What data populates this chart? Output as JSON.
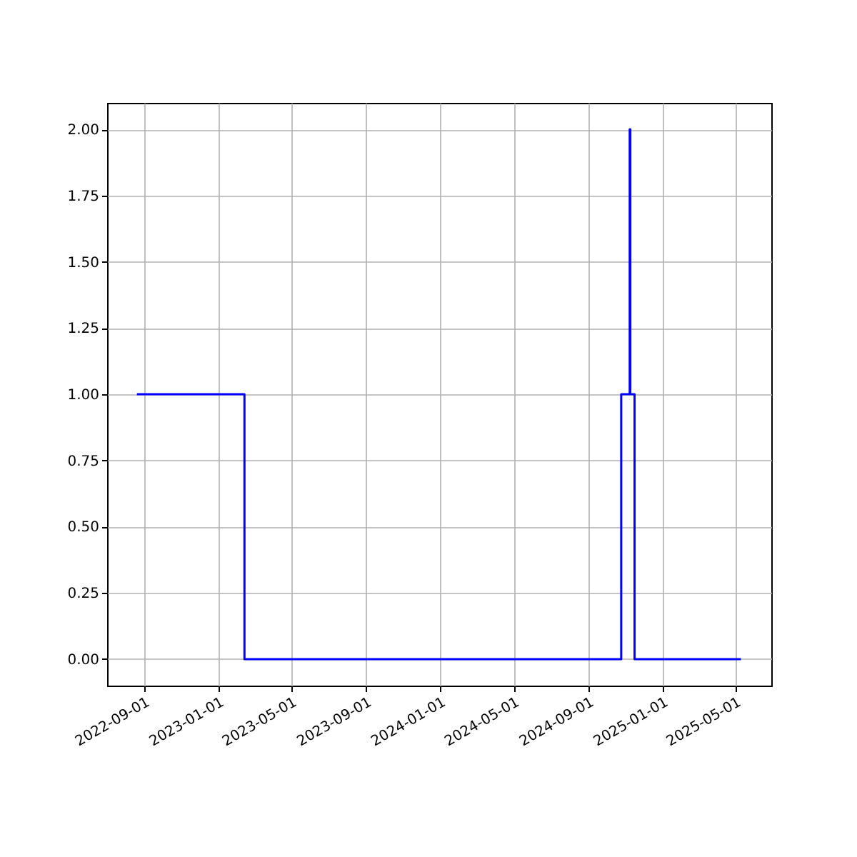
{
  "chart_data": {
    "type": "step",
    "x": [
      "2022-08-20",
      "2023-02-13",
      "2024-10-25",
      "2024-11-08",
      "2024-11-09",
      "2024-11-16",
      "2025-05-10"
    ],
    "series": [
      {
        "color": "#0000ff",
        "values": [
          1,
          0,
          1,
          2,
          1,
          0,
          0
        ]
      }
    ],
    "xlim": [
      "2022-07-02",
      "2025-06-29"
    ],
    "xticks": [
      "2022-09-01",
      "2023-01-01",
      "2023-05-01",
      "2023-09-01",
      "2024-01-01",
      "2024-05-01",
      "2024-09-01",
      "2025-01-01",
      "2025-05-01"
    ],
    "ylim": [
      -0.1,
      2.1
    ],
    "yticks": [
      {
        "value": 0,
        "label": "0.00"
      },
      {
        "value": 0.25,
        "label": "0.25"
      },
      {
        "value": 0.5,
        "label": "0.50"
      },
      {
        "value": 0.75,
        "label": "0.75"
      },
      {
        "value": 1,
        "label": "1.00"
      },
      {
        "value": 1.25,
        "label": "1.25"
      },
      {
        "value": 1.5,
        "label": "1.50"
      },
      {
        "value": 1.75,
        "label": "1.75"
      },
      {
        "value": 2,
        "label": "2.00"
      }
    ],
    "grid": true,
    "legend": false
  }
}
